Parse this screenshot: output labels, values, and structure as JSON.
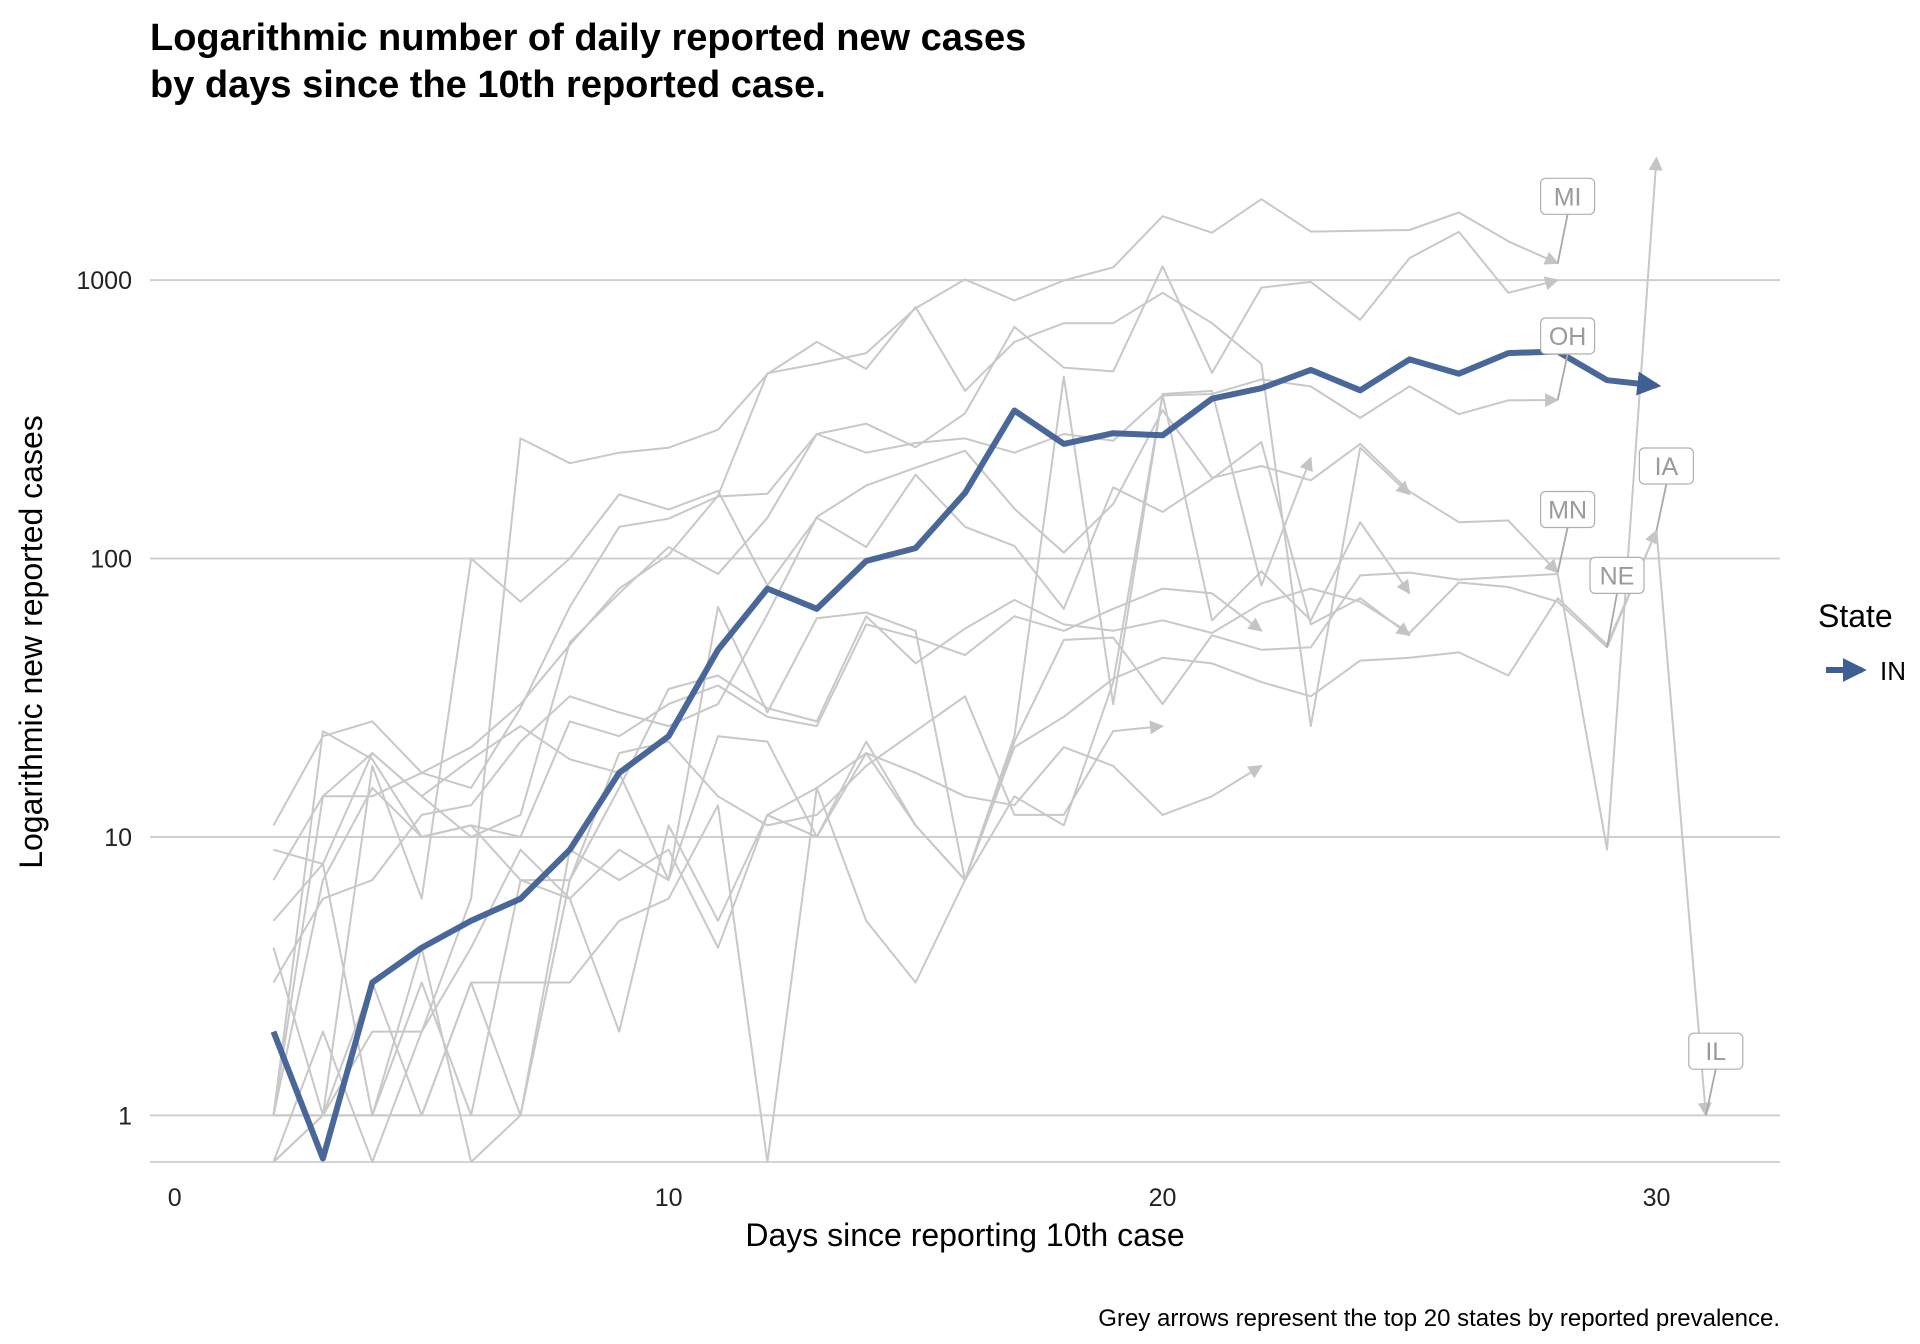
{
  "chart_data": {
    "type": "line",
    "title_lines": [
      "Logarithmic number of daily reported new cases",
      "by days since the 10th reported case."
    ],
    "xlabel": "Days since reporting 10th case",
    "ylabel": "Logarithmic new reported cases",
    "caption": "Grey arrows represent the top 20 states by reported prevalence.",
    "x_scale": "linear",
    "y_scale": "log10",
    "xlim": [
      -0.5,
      32.5
    ],
    "ylim": [
      0.68,
      2700
    ],
    "x_ticks": [
      0,
      10,
      20,
      30
    ],
    "x_tick_labels": [
      "0",
      "10",
      "20",
      "30"
    ],
    "y_ticks": [
      1,
      10,
      100,
      1000
    ],
    "y_tick_labels": [
      "1",
      "10",
      "100",
      "1000"
    ],
    "grid": "horizontal major",
    "legend": {
      "title": "State",
      "placement": "right",
      "entries": [
        {
          "label": "IN",
          "color": "#3f5f93"
        }
      ]
    },
    "highlight_color": "#3f5f93",
    "background_color": "#c8c8c8",
    "highlight": {
      "name": "IN",
      "x": [
        2,
        3,
        4,
        5,
        6,
        7,
        8,
        9,
        10,
        11,
        12,
        13,
        14,
        15,
        16,
        17,
        18,
        19,
        20,
        21,
        22,
        23,
        24,
        25,
        26,
        27,
        28,
        29,
        30
      ],
      "values": [
        2,
        0.7,
        3,
        4,
        5,
        6,
        9,
        17,
        23,
        47,
        78,
        66,
        98,
        109,
        172,
        340,
        258,
        282,
        277,
        375,
        409,
        476,
        402,
        519,
        461,
        547,
        554,
        437,
        418
      ]
    },
    "background_series": [
      {
        "x": [
          2,
          3,
          4,
          5,
          6,
          7,
          8,
          9,
          10,
          11,
          12,
          13,
          14,
          15,
          16,
          17,
          18,
          19,
          20,
          21,
          22,
          23,
          24,
          25,
          26,
          27,
          28
        ],
        "values": [
          11,
          23,
          26,
          17,
          21,
          30,
          49,
          78,
          103,
          168,
          463,
          500,
          547,
          792,
          1006,
          845,
          997,
          1111,
          1697,
          1480,
          1953,
          1493,
          1504,
          1514,
          1749,
          1378,
          1149
        ]
      },
      {
        "x": [
          2,
          3,
          4,
          5,
          6,
          7,
          8,
          9,
          10,
          11,
          12,
          13,
          14,
          15,
          16,
          17,
          18,
          19,
          20,
          21,
          22,
          23,
          24,
          25,
          26,
          27,
          28
        ],
        "values": [
          7,
          14,
          14,
          17,
          15,
          29,
          67,
          130,
          139,
          167,
          171,
          280,
          305,
          251,
          332,
          679,
          485,
          470,
          1120,
          464,
          940,
          985,
          720,
          1200,
          1490,
          900,
          1000
        ]
      },
      {
        "x": [
          2,
          3,
          4,
          5,
          6,
          7,
          8,
          9,
          10,
          11,
          12,
          13,
          14,
          15,
          16,
          17,
          18,
          19,
          20,
          21,
          22,
          23,
          24,
          25,
          26,
          27,
          28
        ],
        "values": [
          5,
          8,
          20,
          14,
          10,
          12,
          50,
          75,
          110,
          88,
          140,
          280,
          240,
          260,
          270,
          240,
          280,
          265,
          385,
          390,
          440,
          415,
          320,
          415,
          330,
          370,
          371
        ]
      },
      {
        "x": [
          2,
          3,
          4,
          5,
          6,
          7,
          8,
          9,
          10,
          11,
          12,
          13,
          14,
          15,
          16,
          17,
          18,
          19,
          20,
          21,
          22,
          23,
          24,
          25,
          26,
          27,
          28
        ],
        "values": [
          3,
          6,
          7,
          12,
          13,
          22,
          32,
          28,
          25,
          30,
          63,
          141,
          183,
          212,
          244,
          151,
          105,
          157,
          341,
          195,
          215,
          191,
          258,
          174,
          135,
          137,
          89
        ]
      },
      {
        "x": [
          2,
          3,
          4,
          5,
          6,
          7,
          8,
          9,
          10,
          11,
          12,
          13,
          14,
          15,
          16,
          17,
          18,
          19,
          20,
          21,
          22
        ],
        "values": [
          1,
          24,
          19,
          10,
          11,
          10,
          26,
          23,
          30,
          35,
          27,
          25,
          58,
          52,
          45,
          62,
          55,
          66,
          78,
          75,
          55
        ]
      },
      {
        "x": [
          2,
          3,
          4,
          5,
          6,
          7,
          8,
          9,
          10,
          11,
          12,
          13,
          14,
          15,
          16,
          17,
          18,
          19,
          20,
          21,
          22,
          23,
          24,
          25,
          26,
          27,
          28,
          29,
          30
        ],
        "values": [
          1,
          7,
          15,
          10,
          11,
          7,
          7,
          15,
          34,
          38,
          29,
          26,
          62,
          42,
          56,
          71,
          58,
          55,
          60,
          54,
          69,
          78,
          70,
          54,
          82,
          79,
          70,
          48,
          126
        ]
      },
      {
        "x": [
          2,
          3,
          4,
          5,
          6,
          7,
          8,
          9,
          10,
          11,
          12,
          13,
          14,
          15,
          16,
          17,
          18,
          19,
          20,
          21,
          22,
          23,
          24,
          25
        ],
        "values": [
          4,
          1,
          18,
          6,
          100,
          70,
          100,
          170,
          150,
          175,
          80,
          140,
          110,
          200,
          130,
          111,
          66,
          180,
          147,
          193,
          262,
          58,
          72,
          53
        ]
      },
      {
        "x": [
          2,
          3,
          4,
          5,
          6,
          7,
          8,
          9,
          10,
          11,
          12,
          13,
          14,
          15,
          16,
          17,
          18,
          19,
          20,
          21,
          22,
          23,
          24,
          25,
          26,
          27,
          28,
          29,
          30
        ],
        "values": [
          1,
          14,
          20,
          14,
          19,
          25,
          19,
          17,
          7,
          23,
          22,
          10,
          20,
          11,
          7,
          22,
          51,
          52,
          30,
          53,
          47,
          48,
          87,
          89,
          84,
          86,
          88,
          9,
          2750
        ]
      },
      {
        "x": [
          2,
          3,
          4,
          5,
          6,
          7,
          8,
          9,
          10,
          11,
          12,
          13,
          14,
          15,
          16,
          17,
          18,
          19,
          20,
          21,
          22,
          23,
          24,
          25,
          26,
          27,
          28,
          29,
          30,
          31
        ],
        "values": [
          1,
          1,
          1,
          3,
          1,
          7,
          6,
          2,
          11,
          5,
          12,
          10,
          22,
          11,
          7,
          21,
          27,
          37,
          44,
          42,
          36,
          32,
          43,
          44,
          46,
          38,
          72,
          49,
          126,
          1
        ]
      },
      {
        "x": [
          2,
          3,
          4,
          5,
          6,
          7,
          8,
          9,
          10,
          11,
          12,
          13,
          14,
          15,
          16,
          17,
          18,
          19,
          20,
          21,
          22
        ],
        "values": [
          1,
          1,
          1,
          1,
          3,
          3,
          3,
          5,
          6,
          13,
          0.6,
          15,
          20,
          17,
          14,
          13,
          21,
          18,
          12,
          14,
          18
        ]
      },
      {
        "x": [
          2,
          3,
          4,
          5,
          6,
          7,
          8,
          9,
          10,
          11,
          12,
          13,
          14,
          15,
          16,
          17,
          18,
          19,
          20,
          21,
          22,
          23
        ],
        "values": [
          9,
          8,
          1,
          4,
          0.6,
          1,
          9,
          7,
          9,
          4,
          12,
          15,
          5,
          3,
          7,
          14,
          11,
          36,
          390,
          400,
          80,
          230
        ]
      },
      {
        "x": [
          2,
          3,
          4,
          5,
          6,
          7,
          8,
          9,
          10,
          11,
          12,
          13,
          14,
          15,
          16,
          17,
          18,
          19,
          20,
          21,
          22,
          23,
          24,
          25
        ],
        "values": [
          0.6,
          2,
          0.6,
          2,
          4,
          9,
          6,
          9,
          7,
          67,
          28,
          61,
          64,
          55,
          7,
          23,
          450,
          30,
          387,
          60,
          90,
          60,
          135,
          75
        ]
      },
      {
        "x": [
          2,
          3,
          4,
          5,
          6,
          7,
          8,
          9,
          10,
          11,
          12,
          13,
          14,
          15,
          16,
          17,
          18,
          19,
          20
        ],
        "values": [
          0.6,
          1,
          3,
          1,
          3,
          1,
          7,
          20,
          22,
          14,
          11,
          12,
          18,
          24,
          32,
          12,
          12,
          24,
          25
        ]
      },
      {
        "x": [
          2,
          3,
          4,
          5,
          6,
          7,
          8,
          9,
          10,
          11,
          12,
          13,
          14,
          15,
          16,
          17,
          18,
          19,
          20,
          21,
          22,
          23,
          24,
          25
        ],
        "values": [
          0.6,
          1,
          2,
          2,
          6,
          270,
          220,
          240,
          250,
          290,
          460,
          600,
          480,
          800,
          400,
          600,
          700,
          700,
          900,
          700,
          500,
          25,
          250,
          170
        ]
      }
    ],
    "labels": [
      {
        "text": "MI",
        "x": 28.2,
        "y": 2000,
        "anchor_x": 28,
        "anchor_y": 1149
      },
      {
        "text": "OH",
        "x": 28.2,
        "y": 630,
        "anchor_x": 28,
        "anchor_y": 371
      },
      {
        "text": "MN",
        "x": 28.2,
        "y": 150,
        "anchor_x": 28,
        "anchor_y": 89
      },
      {
        "text": "NE",
        "x": 29.2,
        "y": 87,
        "anchor_x": 29,
        "anchor_y": 48
      },
      {
        "text": "IA",
        "x": 30.2,
        "y": 215,
        "anchor_x": 30,
        "anchor_y": 126
      },
      {
        "text": "IL",
        "x": 31.2,
        "y": 1.7,
        "anchor_x": 31,
        "anchor_y": 1
      }
    ]
  }
}
